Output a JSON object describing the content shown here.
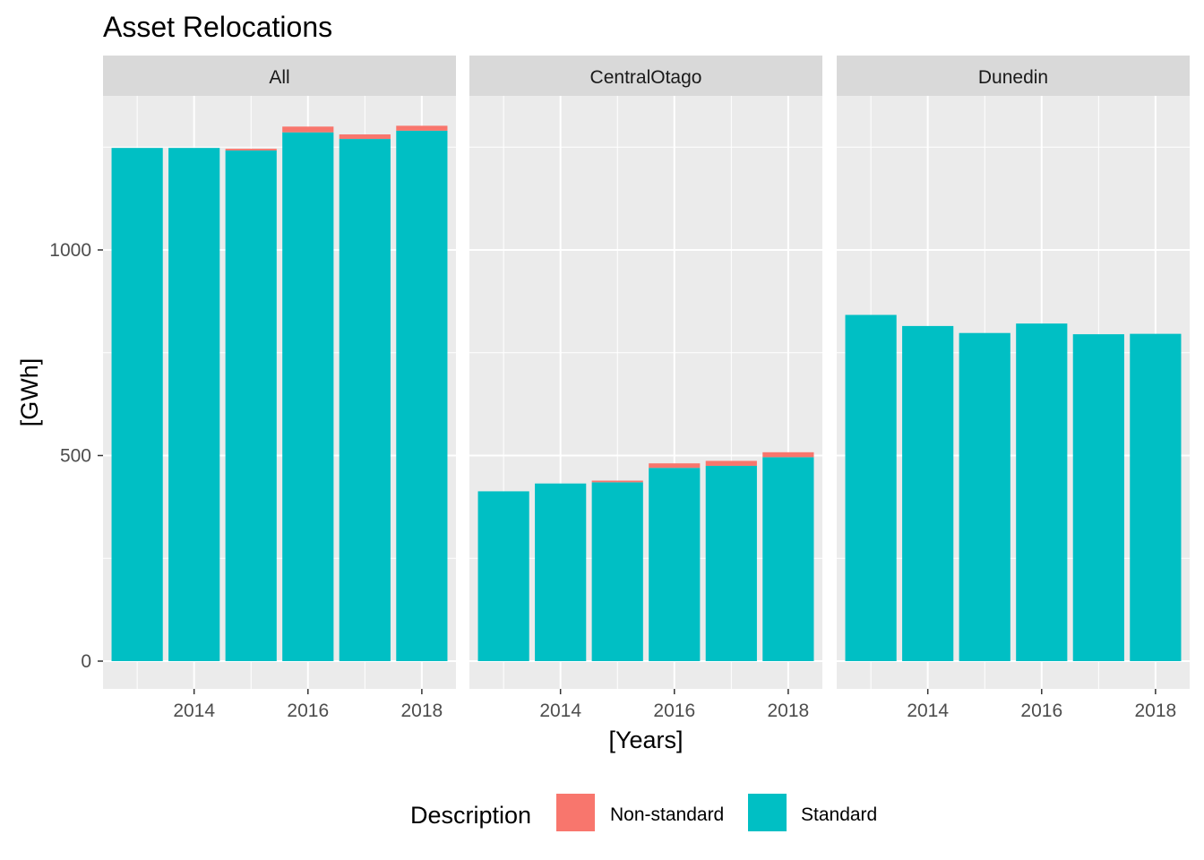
{
  "chart_data": {
    "type": "bar",
    "stacked": true,
    "faceted": true,
    "title": "Asset Relocations",
    "xlabel": "[Years]",
    "ylabel": "[GWh]",
    "x": [
      2013,
      2014,
      2015,
      2016,
      2017,
      2018
    ],
    "x_ticks": [
      "2014",
      "2016",
      "2018"
    ],
    "y_ticks": [
      "0",
      "500",
      "1000"
    ],
    "ylim": [
      -60,
      1370
    ],
    "grid": true,
    "legend": {
      "title": "Description",
      "position": "bottom",
      "entries": [
        "Non-standard",
        "Standard"
      ]
    },
    "colors": {
      "Non-standard": "#F8766D",
      "Standard": "#00BFC4"
    },
    "facets": [
      {
        "name": "All",
        "series": [
          {
            "name": "Standard",
            "values": [
              1248,
              1248,
              1242,
              1286,
              1270,
              1290
            ]
          },
          {
            "name": "Non-standard",
            "values": [
              0,
              0,
              4,
              14,
              11,
              12
            ]
          }
        ]
      },
      {
        "name": "CentralOtago",
        "series": [
          {
            "name": "Standard",
            "values": [
              413,
              432,
              435,
              470,
              475,
              496
            ]
          },
          {
            "name": "Non-standard",
            "values": [
              0,
              0,
              4,
              11,
              12,
              12
            ]
          }
        ]
      },
      {
        "name": "Dunedin",
        "series": [
          {
            "name": "Standard",
            "values": [
              842,
              815,
              798,
              821,
              795,
              796
            ]
          },
          {
            "name": "Non-standard",
            "values": [
              0,
              0,
              0,
              0,
              0,
              0
            ]
          }
        ]
      }
    ]
  }
}
